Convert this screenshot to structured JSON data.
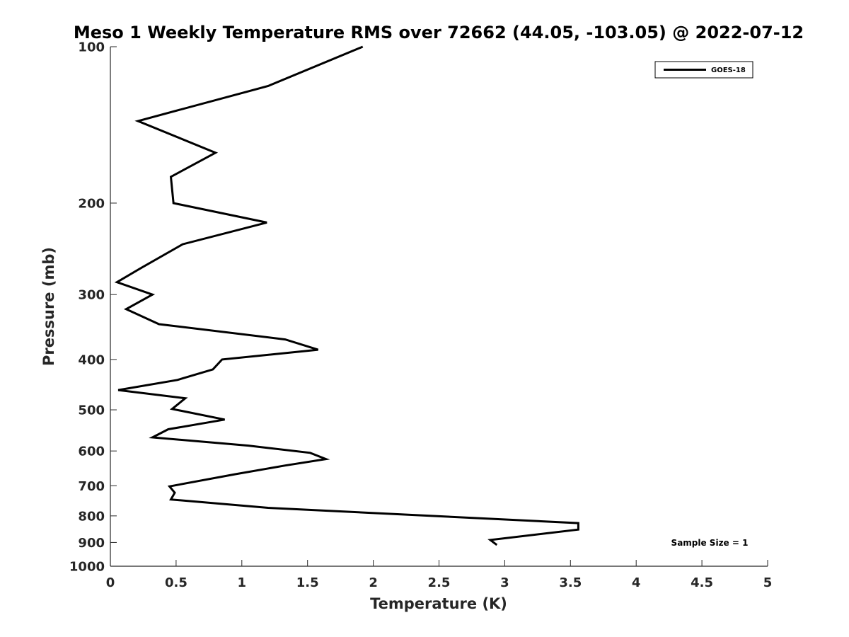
{
  "chart_data": {
    "type": "line",
    "title": "Meso 1 Weekly Temperature RMS over 72662 (44.05, -103.05) @ 2022-07-12",
    "xlabel": "Temperature (K)",
    "ylabel": "Pressure (mb)",
    "xlim": [
      0,
      5
    ],
    "ylim": [
      1000,
      100
    ],
    "y_scale": "log",
    "y_reversed": true,
    "x_ticks": [
      0,
      0.5,
      1,
      1.5,
      2,
      2.5,
      3,
      3.5,
      4,
      4.5,
      5
    ],
    "x_tick_labels": [
      "0",
      "0.5",
      "1",
      "1.5",
      "2",
      "2.5",
      "3",
      "3.5",
      "4",
      "4.5",
      "5"
    ],
    "y_ticks": [
      100,
      200,
      300,
      400,
      500,
      600,
      700,
      800,
      900,
      1000
    ],
    "y_tick_labels": [
      "100",
      "200",
      "300",
      "400",
      "500",
      "600",
      "700",
      "800",
      "900",
      "1000"
    ],
    "grid": false,
    "legend_position": "top-right",
    "annotation": "Sample Size = 1",
    "series": [
      {
        "name": "GOES-18",
        "color": "#000000",
        "points": [
          {
            "x": 1.92,
            "y": 100
          },
          {
            "x": 1.2,
            "y": 119
          },
          {
            "x": 0.21,
            "y": 139
          },
          {
            "x": 0.8,
            "y": 160
          },
          {
            "x": 0.46,
            "y": 178
          },
          {
            "x": 0.48,
            "y": 200
          },
          {
            "x": 1.19,
            "y": 218
          },
          {
            "x": 0.55,
            "y": 240
          },
          {
            "x": 0.24,
            "y": 266
          },
          {
            "x": 0.05,
            "y": 284
          },
          {
            "x": 0.32,
            "y": 300
          },
          {
            "x": 0.12,
            "y": 320
          },
          {
            "x": 0.37,
            "y": 342
          },
          {
            "x": 1.33,
            "y": 366
          },
          {
            "x": 1.58,
            "y": 383
          },
          {
            "x": 0.85,
            "y": 400
          },
          {
            "x": 0.78,
            "y": 418
          },
          {
            "x": 0.51,
            "y": 438
          },
          {
            "x": 0.06,
            "y": 458
          },
          {
            "x": 0.57,
            "y": 475
          },
          {
            "x": 0.47,
            "y": 498
          },
          {
            "x": 0.87,
            "y": 522
          },
          {
            "x": 0.44,
            "y": 545
          },
          {
            "x": 0.32,
            "y": 565
          },
          {
            "x": 1.05,
            "y": 586
          },
          {
            "x": 1.52,
            "y": 605
          },
          {
            "x": 1.64,
            "y": 622
          },
          {
            "x": 1.33,
            "y": 640
          },
          {
            "x": 0.95,
            "y": 665
          },
          {
            "x": 0.45,
            "y": 702
          },
          {
            "x": 0.49,
            "y": 722
          },
          {
            "x": 0.46,
            "y": 744
          },
          {
            "x": 1.2,
            "y": 772
          },
          {
            "x": 3.56,
            "y": 826
          },
          {
            "x": 3.56,
            "y": 850
          },
          {
            "x": 2.89,
            "y": 890
          },
          {
            "x": 2.94,
            "y": 910
          }
        ]
      }
    ]
  }
}
